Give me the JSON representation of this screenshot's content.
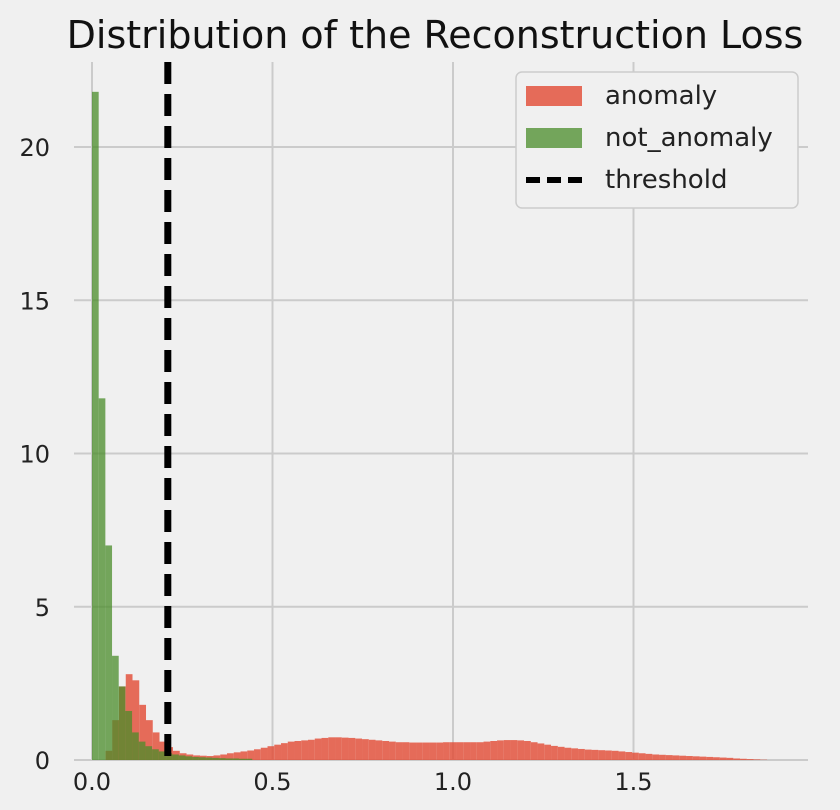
{
  "chart_data": {
    "type": "histogram",
    "title": "Distribution of the Reconstruction Loss",
    "xlabel": "",
    "ylabel": "",
    "xlim": [
      -0.05,
      2.0
    ],
    "ylim": [
      0,
      23
    ],
    "xticks": [
      0.0,
      0.5,
      1.0,
      1.5
    ],
    "xtick_labels": [
      "0.0",
      "0.5",
      "1.0",
      "1.5"
    ],
    "yticks": [
      0,
      5,
      10,
      15,
      20
    ],
    "ytick_labels": [
      "0",
      "5",
      "10",
      "15",
      "20"
    ],
    "grid": true,
    "legend_position": "top-right",
    "series": [
      {
        "name": "anomaly",
        "color": "#e24a33",
        "opacity": 0.8,
        "bin_width": 0.0187,
        "start": 0.0,
        "values": [
          0.0,
          0.0,
          0.3,
          1.3,
          2.4,
          2.8,
          2.6,
          1.8,
          1.3,
          0.9,
          0.6,
          0.42,
          0.3,
          0.22,
          0.18,
          0.15,
          0.14,
          0.13,
          0.15,
          0.18,
          0.22,
          0.25,
          0.28,
          0.31,
          0.35,
          0.4,
          0.45,
          0.5,
          0.55,
          0.6,
          0.62,
          0.64,
          0.66,
          0.7,
          0.72,
          0.74,
          0.74,
          0.73,
          0.72,
          0.7,
          0.68,
          0.66,
          0.64,
          0.62,
          0.6,
          0.58,
          0.58,
          0.57,
          0.57,
          0.57,
          0.57,
          0.57,
          0.58,
          0.58,
          0.58,
          0.58,
          0.58,
          0.58,
          0.6,
          0.62,
          0.64,
          0.65,
          0.65,
          0.64,
          0.62,
          0.58,
          0.54,
          0.5,
          0.46,
          0.43,
          0.4,
          0.38,
          0.36,
          0.34,
          0.33,
          0.32,
          0.31,
          0.3,
          0.28,
          0.26,
          0.24,
          0.22,
          0.2,
          0.18,
          0.17,
          0.16,
          0.15,
          0.14,
          0.13,
          0.12,
          0.11,
          0.1,
          0.09,
          0.08,
          0.07,
          0.05,
          0.04,
          0.03,
          0.02,
          0.01
        ]
      },
      {
        "name": "not_anomaly",
        "color": "#348abd",
        "display_color": "#4a8c2a",
        "opacity": 0.75,
        "bin_width": 0.0185,
        "start": 0.0,
        "values": [
          21.8,
          11.8,
          7.0,
          3.4,
          2.4,
          1.6,
          0.9,
          0.6,
          0.45,
          0.35,
          0.28,
          0.22,
          0.18,
          0.15,
          0.12,
          0.1,
          0.09,
          0.08,
          0.07,
          0.06,
          0.05,
          0.05,
          0.04,
          0.04
        ]
      }
    ],
    "threshold": {
      "name": "threshold",
      "x": 0.21,
      "color": "#000000",
      "style": "dashed"
    }
  }
}
